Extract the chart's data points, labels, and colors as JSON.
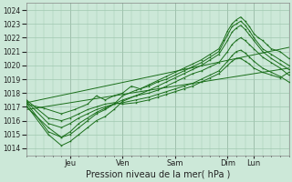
{
  "title": "",
  "xlabel": "Pression niveau de la mer( hPa )",
  "ylabel": "",
  "bg_color": "#cce8d8",
  "grid_color": "#a0c8b0",
  "line_color": "#1a6e1a",
  "ylim": [
    1013.5,
    1024.5
  ],
  "xlim": [
    0,
    120
  ],
  "yticks": [
    1014,
    1015,
    1016,
    1017,
    1018,
    1019,
    1020,
    1021,
    1022,
    1023,
    1024
  ],
  "day_ticks": [
    20,
    44,
    68,
    92,
    104
  ],
  "day_labels": [
    "Jeu",
    "Ven",
    "Sam",
    "Dim",
    "Lun"
  ],
  "series": [
    [
      0,
      1017.2,
      8,
      1016.9,
      16,
      1016.5,
      22,
      1016.8,
      28,
      1017.2,
      32,
      1017.8,
      36,
      1017.5,
      40,
      1017.8,
      44,
      1018.0,
      48,
      1018.5,
      52,
      1018.3,
      56,
      1018.6,
      60,
      1018.9,
      64,
      1019.2,
      68,
      1019.5,
      72,
      1019.8,
      76,
      1020.1,
      80,
      1020.4,
      84,
      1020.8,
      88,
      1021.2,
      90,
      1021.8,
      92,
      1022.5,
      94,
      1023.0,
      96,
      1023.3,
      98,
      1023.5,
      100,
      1023.2,
      102,
      1022.8,
      104,
      1022.3,
      106,
      1022.0,
      108,
      1021.8,
      110,
      1021.5,
      112,
      1021.2,
      116,
      1021.0,
      120,
      1020.5
    ],
    [
      0,
      1017.0,
      10,
      1015.5,
      16,
      1014.8,
      20,
      1015.0,
      24,
      1015.5,
      28,
      1016.0,
      32,
      1016.5,
      36,
      1016.8,
      40,
      1017.2,
      44,
      1017.8,
      50,
      1018.2,
      56,
      1018.5,
      60,
      1018.8,
      64,
      1019.0,
      68,
      1019.3,
      72,
      1019.6,
      76,
      1019.9,
      80,
      1020.2,
      84,
      1020.6,
      88,
      1021.0,
      92,
      1022.2,
      94,
      1022.8,
      96,
      1023.0,
      98,
      1023.2,
      100,
      1022.9,
      102,
      1022.5,
      104,
      1022.0,
      108,
      1021.2,
      112,
      1020.8,
      116,
      1020.4,
      120,
      1020.0
    ],
    [
      0,
      1017.1,
      10,
      1015.0,
      16,
      1014.2,
      20,
      1014.5,
      24,
      1015.0,
      28,
      1015.5,
      32,
      1016.0,
      36,
      1016.3,
      40,
      1016.8,
      44,
      1017.4,
      50,
      1017.8,
      56,
      1018.2,
      60,
      1018.5,
      64,
      1018.8,
      68,
      1019.1,
      72,
      1019.4,
      76,
      1019.7,
      80,
      1020.0,
      84,
      1020.4,
      88,
      1020.8,
      92,
      1021.8,
      94,
      1022.4,
      96,
      1022.7,
      98,
      1022.9,
      100,
      1022.6,
      102,
      1022.2,
      104,
      1021.8,
      108,
      1021.0,
      112,
      1020.5,
      116,
      1020.1,
      120,
      1019.7
    ],
    [
      0,
      1017.3,
      10,
      1015.2,
      16,
      1014.8,
      20,
      1015.2,
      24,
      1015.8,
      28,
      1016.2,
      32,
      1016.6,
      36,
      1016.9,
      40,
      1017.2,
      44,
      1017.5,
      50,
      1017.8,
      56,
      1018.0,
      60,
      1018.2,
      64,
      1018.5,
      68,
      1018.8,
      72,
      1019.1,
      76,
      1019.4,
      80,
      1019.6,
      84,
      1019.9,
      88,
      1020.2,
      92,
      1021.0,
      94,
      1021.5,
      96,
      1021.8,
      98,
      1022.0,
      100,
      1021.8,
      102,
      1021.5,
      104,
      1021.2,
      108,
      1020.6,
      112,
      1020.2,
      116,
      1019.8,
      120,
      1019.3
    ],
    [
      0,
      1017.4,
      10,
      1015.8,
      16,
      1015.5,
      20,
      1015.8,
      24,
      1016.2,
      28,
      1016.5,
      32,
      1016.8,
      36,
      1017.0,
      40,
      1017.2,
      44,
      1017.3,
      50,
      1017.5,
      56,
      1017.7,
      60,
      1017.9,
      64,
      1018.1,
      68,
      1018.3,
      72,
      1018.5,
      76,
      1018.7,
      80,
      1019.0,
      84,
      1019.3,
      88,
      1019.6,
      92,
      1020.3,
      94,
      1020.7,
      96,
      1021.0,
      98,
      1021.1,
      100,
      1020.9,
      102,
      1020.6,
      104,
      1020.3,
      108,
      1019.8,
      112,
      1019.5,
      116,
      1019.2,
      120,
      1018.8
    ],
    [
      0,
      1017.5,
      10,
      1016.2,
      16,
      1016.0,
      20,
      1016.2,
      24,
      1016.5,
      28,
      1016.8,
      32,
      1017.0,
      36,
      1017.2,
      40,
      1017.3,
      44,
      1017.2,
      50,
      1017.3,
      56,
      1017.5,
      60,
      1017.7,
      64,
      1017.9,
      68,
      1018.1,
      72,
      1018.3,
      76,
      1018.5,
      80,
      1018.8,
      84,
      1019.1,
      88,
      1019.4,
      92,
      1020.0,
      94,
      1020.3,
      96,
      1020.5,
      98,
      1020.5,
      100,
      1020.3,
      102,
      1020.1,
      104,
      1019.8,
      108,
      1019.5,
      112,
      1019.3,
      116,
      1019.1,
      120,
      1019.5
    ],
    [
      0,
      1017.3,
      120,
      1021.3
    ],
    [
      0,
      1016.8,
      120,
      1019.8
    ]
  ]
}
